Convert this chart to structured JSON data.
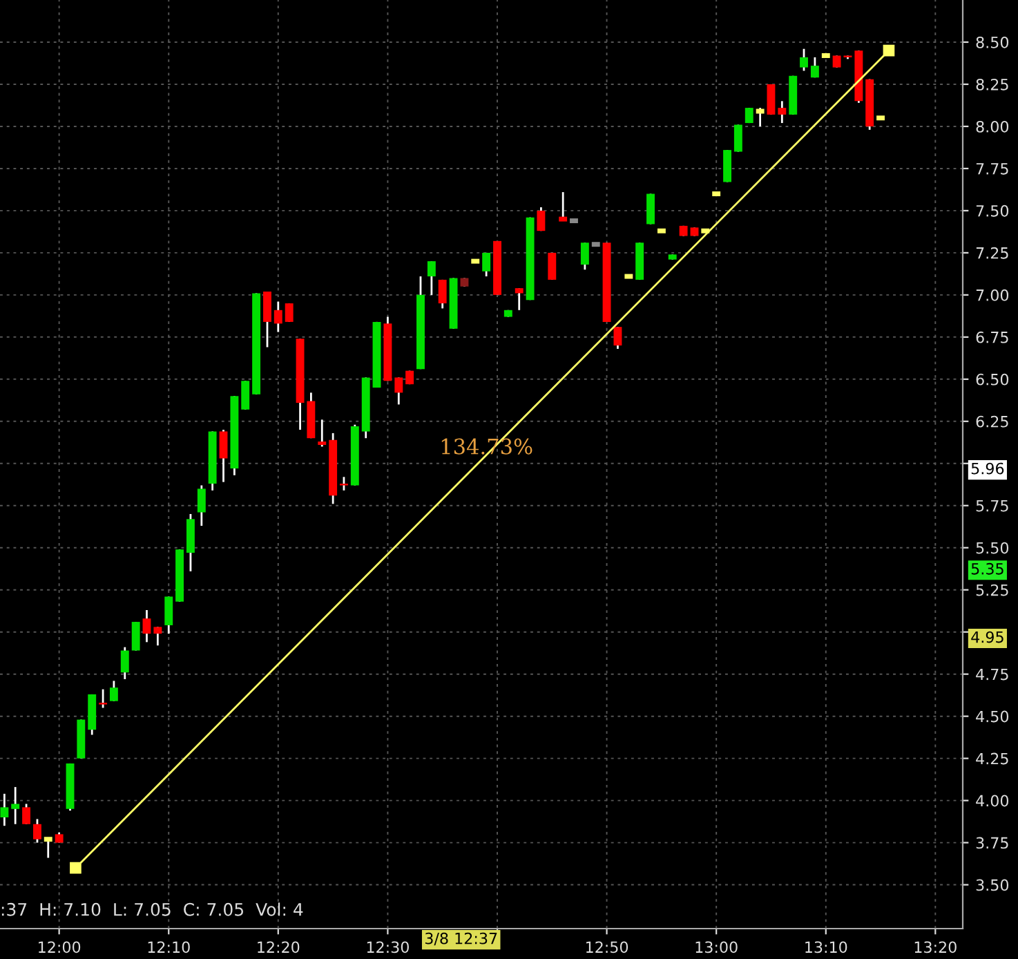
{
  "chart_data": {
    "type": "candlestick",
    "x": [
      11.9167,
      11.9333,
      11.95,
      11.9667,
      11.9833,
      12.0,
      12.0167,
      12.0333,
      12.05,
      12.0667,
      12.0833,
      12.1,
      12.1167,
      12.1333,
      12.15,
      12.1667,
      12.1833,
      12.2,
      12.2167,
      12.2333,
      12.25,
      12.2667,
      12.2833,
      12.3,
      12.3167,
      12.3333,
      12.35,
      12.3667,
      12.3833,
      12.4,
      12.4167,
      12.4333,
      12.45,
      12.4667,
      12.4833,
      12.5,
      12.5167,
      12.5333,
      12.55,
      12.5667,
      12.5833,
      12.6,
      12.6167,
      12.6333,
      12.65,
      12.6667,
      12.6833,
      12.7,
      12.7167,
      12.7333,
      12.75,
      12.7667,
      12.7833,
      12.8,
      12.8167,
      12.8333,
      12.85,
      12.8667,
      12.8833,
      12.9,
      12.9167,
      12.9333,
      12.95,
      12.9667,
      12.9833,
      13.0,
      13.0167,
      13.0333,
      13.05,
      13.0667,
      13.0833,
      13.1,
      13.1167,
      13.1333,
      13.15,
      13.1667,
      13.1833,
      13.2,
      13.2167,
      13.2333,
      13.25
    ],
    "ohlc": [
      [
        3.9,
        4.04,
        3.85,
        3.96
      ],
      [
        3.95,
        4.08,
        3.86,
        3.98
      ],
      [
        3.96,
        3.98,
        3.86,
        3.86
      ],
      [
        3.86,
        3.89,
        3.75,
        3.77
      ],
      [
        3.77,
        3.77,
        3.66,
        3.77
      ],
      [
        3.8,
        3.81,
        3.75,
        3.75
      ],
      [
        3.95,
        4.22,
        3.94,
        4.22
      ],
      [
        4.25,
        4.48,
        4.25,
        4.48
      ],
      [
        4.42,
        4.63,
        4.39,
        4.63
      ],
      [
        4.58,
        4.66,
        4.55,
        4.57
      ],
      [
        4.59,
        4.71,
        4.59,
        4.67
      ],
      [
        4.76,
        4.91,
        4.72,
        4.89
      ],
      [
        4.89,
        5.06,
        4.89,
        5.06
      ],
      [
        5.08,
        5.13,
        4.94,
        4.99
      ],
      [
        5.03,
        5.03,
        4.92,
        4.99
      ],
      [
        5.04,
        5.21,
        4.99,
        5.21
      ],
      [
        5.18,
        5.49,
        5.18,
        5.49
      ],
      [
        5.47,
        5.7,
        5.36,
        5.67
      ],
      [
        5.71,
        5.87,
        5.63,
        5.85
      ],
      [
        5.88,
        6.19,
        5.84,
        6.19
      ],
      [
        6.19,
        6.2,
        5.89,
        6.03
      ],
      [
        5.97,
        6.4,
        5.93,
        6.4
      ],
      [
        6.32,
        6.49,
        6.32,
        6.49
      ],
      [
        6.41,
        7.01,
        6.41,
        7.01
      ],
      [
        7.02,
        7.02,
        6.69,
        6.84
      ],
      [
        6.91,
        6.96,
        6.78,
        6.83
      ],
      [
        6.95,
        6.95,
        6.84,
        6.84
      ],
      [
        6.74,
        6.74,
        6.2,
        6.36
      ],
      [
        6.37,
        6.42,
        6.15,
        6.15
      ],
      [
        6.13,
        6.26,
        6.1,
        6.11
      ],
      [
        6.14,
        6.18,
        5.76,
        5.81
      ],
      [
        5.88,
        5.92,
        5.84,
        5.87
      ],
      [
        5.87,
        6.23,
        5.87,
        6.22
      ],
      [
        6.19,
        6.51,
        6.15,
        6.51
      ],
      [
        6.45,
        6.84,
        6.45,
        6.84
      ],
      [
        6.83,
        6.87,
        6.49,
        6.49
      ],
      [
        6.51,
        6.51,
        6.35,
        6.42
      ],
      [
        6.55,
        6.55,
        6.47,
        6.47
      ],
      [
        6.56,
        7.11,
        6.56,
        7.0
      ],
      [
        7.11,
        7.2,
        7.0,
        7.2
      ],
      [
        7.09,
        7.09,
        6.92,
        6.95
      ],
      [
        6.8,
        7.1,
        6.8,
        7.1
      ],
      [
        7.1,
        7.1,
        7.05,
        7.05
      ],
      [
        7.2,
        7.2,
        7.2,
        7.2
      ],
      [
        7.14,
        7.25,
        7.11,
        7.25
      ],
      [
        7.32,
        7.32,
        7.0,
        7.0
      ],
      [
        6.87,
        6.91,
        6.87,
        6.91
      ],
      [
        7.04,
        7.04,
        6.91,
        7.01
      ],
      [
        6.97,
        7.46,
        6.97,
        7.46
      ],
      [
        7.5,
        7.52,
        7.38,
        7.38
      ],
      [
        7.25,
        7.25,
        7.09,
        7.09
      ],
      [
        7.45,
        7.61,
        7.45,
        7.45
      ],
      [
        7.44,
        7.44,
        7.44,
        7.44
      ],
      [
        7.18,
        7.31,
        7.15,
        7.31
      ],
      [
        7.3,
        7.3,
        7.3,
        7.3
      ],
      [
        7.31,
        7.31,
        6.84,
        6.84
      ],
      [
        6.81,
        6.81,
        6.68,
        6.7
      ],
      [
        7.11,
        7.11,
        7.11,
        7.11
      ],
      [
        7.09,
        7.31,
        7.09,
        7.31
      ],
      [
        7.42,
        7.6,
        7.42,
        7.6
      ],
      [
        7.38,
        7.38,
        7.38,
        7.38
      ],
      [
        7.21,
        7.24,
        7.21,
        7.24
      ],
      [
        7.41,
        7.41,
        7.35,
        7.35
      ],
      [
        7.4,
        7.4,
        7.35,
        7.35
      ],
      [
        7.38,
        7.38,
        7.38,
        7.38
      ],
      [
        7.6,
        7.6,
        7.6,
        7.6
      ],
      [
        7.67,
        7.86,
        7.67,
        7.86
      ],
      [
        7.85,
        8.01,
        7.85,
        8.01
      ],
      [
        8.02,
        8.11,
        8.02,
        8.11
      ],
      [
        8.09,
        8.11,
        8.0,
        8.09
      ],
      [
        8.25,
        8.25,
        8.07,
        8.07
      ],
      [
        8.11,
        8.15,
        8.02,
        8.07
      ],
      [
        8.07,
        8.3,
        8.07,
        8.3
      ],
      [
        8.35,
        8.46,
        8.33,
        8.41
      ],
      [
        8.29,
        8.41,
        8.29,
        8.36
      ],
      [
        8.42,
        8.42,
        8.42,
        8.42
      ],
      [
        8.42,
        8.42,
        8.35,
        8.35
      ],
      [
        8.42,
        8.42,
        8.4,
        8.41
      ],
      [
        8.45,
        8.45,
        8.14,
        8.15
      ],
      [
        8.28,
        8.28,
        7.98,
        8.0
      ],
      [
        8.05,
        8.05,
        8.05,
        8.05
      ]
    ],
    "colors": [
      "#00e000",
      "#00e000",
      "#ff0000",
      "#ff0000",
      "#ffff66",
      "#ff0000",
      "#00e000",
      "#00e000",
      "#00e000",
      "#ff0000",
      "#00e000",
      "#00e000",
      "#00e000",
      "#ff0000",
      "#ff0000",
      "#00e000",
      "#00e000",
      "#00e000",
      "#00e000",
      "#00e000",
      "#ff0000",
      "#00e000",
      "#00e000",
      "#00e000",
      "#ff0000",
      "#ff0000",
      "#ff0000",
      "#ff0000",
      "#ff0000",
      "#ff0000",
      "#ff0000",
      "#ff0000",
      "#00e000",
      "#00e000",
      "#00e000",
      "#ff0000",
      "#ff0000",
      "#ff0000",
      "#00e000",
      "#00e000",
      "#ff0000",
      "#00e000",
      "#8b1a1a",
      "#ffff66",
      "#00e000",
      "#ff0000",
      "#00e000",
      "#ff0000",
      "#00e000",
      "#ff0000",
      "#ff0000",
      "#ff0000",
      "#888888",
      "#00e000",
      "#888888",
      "#ff0000",
      "#ff0000",
      "#ffff66",
      "#00e000",
      "#00e000",
      "#ffff66",
      "#00e000",
      "#ff0000",
      "#ff0000",
      "#ffff66",
      "#ffff66",
      "#00e000",
      "#00e000",
      "#00e000",
      "#ffff66",
      "#ff0000",
      "#ff0000",
      "#00e000",
      "#00e000",
      "#00e000",
      "#ffff66",
      "#ff0000",
      "#ff0000",
      "#ff0000",
      "#ff0000",
      "#ffff66"
    ],
    "series": [
      {
        "type": "line",
        "x": [
          12.025,
          13.2625
        ],
        "values": [
          3.6,
          8.45
        ],
        "color": "#ffff66",
        "marker": "square"
      }
    ],
    "annotations": [
      {
        "text": "134.73%",
        "x": 12.65,
        "y": 6.09
      },
      ":37  H: 7.10  L: 7.05  C: 7.05  Vol: 4",
      "3/8 12:37",
      "5.96",
      "5.35",
      "4.95"
    ],
    "xlim": [
      11.91,
      13.375
    ],
    "ylim": [
      3.24,
      8.75
    ],
    "xticks": [
      {
        "value": 12.0,
        "label": "12:00"
      },
      {
        "value": 12.1667,
        "label": "12:10"
      },
      {
        "value": 12.3333,
        "label": "12:20"
      },
      {
        "value": 12.5,
        "label": "12:30"
      },
      {
        "value": 12.6667,
        "label": null
      },
      {
        "value": 12.8333,
        "label": "12:50"
      },
      {
        "value": 13.0,
        "label": "13:00"
      },
      {
        "value": 13.1667,
        "label": "13:10"
      },
      {
        "value": 13.3333,
        "label": "13:20"
      }
    ],
    "yticks": [
      {
        "value": 3.5,
        "label": "3.50"
      },
      {
        "value": 3.75,
        "label": "3.75"
      },
      {
        "value": 4.0,
        "label": "4.00"
      },
      {
        "value": 4.25,
        "label": "4.25"
      },
      {
        "value": 4.5,
        "label": "4.50"
      },
      {
        "value": 4.75,
        "label": "4.75"
      },
      {
        "value": 5.0,
        "label": null
      },
      {
        "value": 5.25,
        "label": "5.25"
      },
      {
        "value": 5.5,
        "label": "5.50"
      },
      {
        "value": 5.75,
        "label": "5.75"
      },
      {
        "value": 6.0,
        "label": null
      },
      {
        "value": 6.25,
        "label": "6.25"
      },
      {
        "value": 6.5,
        "label": "6.50"
      },
      {
        "value": 6.75,
        "label": "6.75"
      },
      {
        "value": 7.0,
        "label": "7.00"
      },
      {
        "value": 7.25,
        "label": "7.25"
      },
      {
        "value": 7.5,
        "label": "7.50"
      },
      {
        "value": 7.75,
        "label": "7.75"
      },
      {
        "value": 8.0,
        "label": "8.00"
      },
      {
        "value": 8.25,
        "label": "8.25"
      },
      {
        "value": 8.5,
        "label": "8.50"
      }
    ],
    "grid": true,
    "legend": false
  }
}
